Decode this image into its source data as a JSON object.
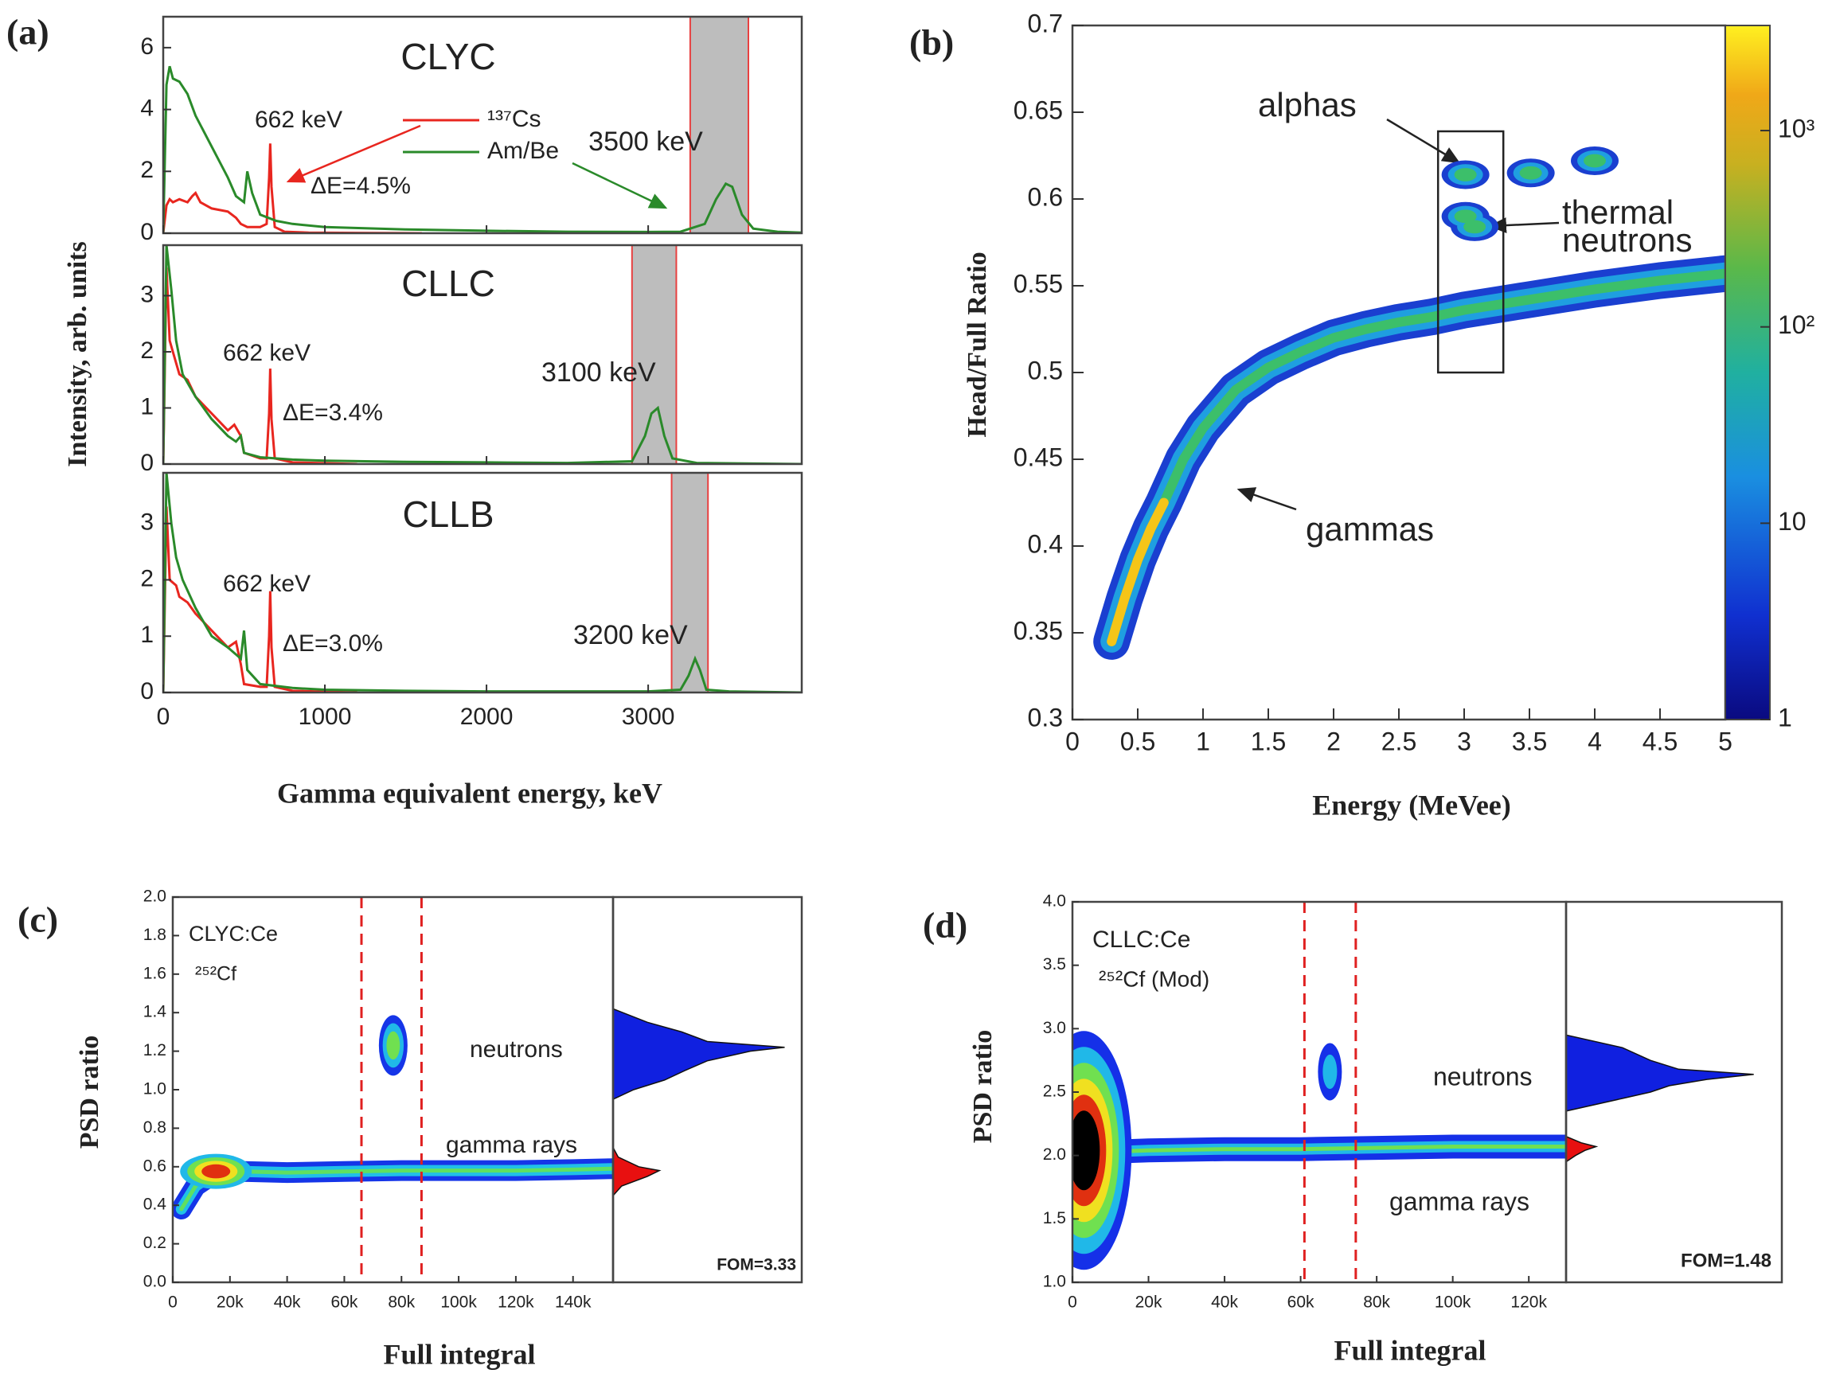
{
  "chart_data": [
    {
      "type": "line",
      "panel_label": "(a)",
      "y_label": "Intensity, arb. units",
      "x_label": "Gamma equivalent energy, keV",
      "xlim": [
        0,
        3950
      ],
      "xticks": [
        0,
        1000,
        2000,
        3000
      ],
      "band_color": "#bdbdbd",
      "subplots": [
        {
          "title": "CLYC",
          "ylim": [
            0,
            7
          ],
          "yticks": [
            0,
            2,
            4,
            6
          ],
          "bands": [
            [
              3260,
              3620
            ]
          ],
          "series": [
            {
              "name": "¹³⁷Cs",
              "color": "#e8261f",
              "x": [
                0,
                20,
                40,
                60,
                100,
                150,
                180,
                200,
                230,
                300,
                400,
                450,
                480,
                520,
                600,
                640,
                655,
                662,
                670,
                690,
                750,
                900,
                1200,
                1600
              ],
              "values": [
                0,
                0.9,
                1.1,
                1.0,
                1.1,
                1.0,
                1.2,
                1.3,
                1.0,
                0.8,
                0.7,
                0.5,
                0.3,
                0.2,
                0.2,
                0.3,
                1.8,
                2.9,
                1.5,
                0.2,
                0.05,
                0.02,
                0.01,
                0
              ]
            },
            {
              "name": "Am/Be",
              "color": "#2a8a2a",
              "x": [
                0,
                20,
                40,
                60,
                100,
                150,
                200,
                300,
                400,
                450,
                500,
                520,
                550,
                600,
                700,
                800,
                1000,
                1500,
                2000,
                2500,
                3000,
                3200,
                3350,
                3420,
                3480,
                3520,
                3580,
                3650,
                3800,
                3950
              ],
              "values": [
                0,
                4.8,
                5.4,
                5.0,
                4.9,
                4.5,
                3.8,
                2.8,
                1.8,
                1.2,
                1.0,
                2.0,
                1.3,
                0.6,
                0.4,
                0.3,
                0.2,
                0.12,
                0.08,
                0.05,
                0.04,
                0.05,
                0.3,
                1.1,
                1.6,
                1.5,
                0.6,
                0.15,
                0.05,
                0.02
              ]
            }
          ],
          "annotations": [
            "662 keV",
            "ΔE=4.5%",
            "3500 keV"
          ]
        },
        {
          "title": "CLLC",
          "ylim": [
            0,
            3.9
          ],
          "yticks": [
            0,
            1,
            2,
            3
          ],
          "bands": [
            [
              2900,
              3174
            ]
          ],
          "series": [
            {
              "color": "#e8261f",
              "x": [
                0,
                20,
                40,
                80,
                100,
                150,
                200,
                300,
                400,
                440,
                480,
                500,
                600,
                640,
                655,
                662,
                670,
                690,
                800,
                1200
              ],
              "values": [
                0,
                3.5,
                2.2,
                1.8,
                1.6,
                1.5,
                1.2,
                0.9,
                0.6,
                0.7,
                0.5,
                0.2,
                0.1,
                0.1,
                0.9,
                1.7,
                0.8,
                0.1,
                0.03,
                0
              ]
            },
            {
              "color": "#2a8a2a",
              "x": [
                0,
                20,
                50,
                80,
                120,
                200,
                300,
                400,
                450,
                480,
                500,
                600,
                800,
                1000,
                1500,
                2000,
                2500,
                2900,
                2980,
                3020,
                3060,
                3100,
                3150,
                3300,
                3950
              ],
              "values": [
                0,
                3.9,
                3.1,
                2.2,
                1.6,
                1.2,
                0.8,
                0.5,
                0.4,
                0.5,
                0.2,
                0.12,
                0.08,
                0.06,
                0.04,
                0.03,
                0.02,
                0.05,
                0.5,
                0.9,
                1.0,
                0.5,
                0.1,
                0.02,
                0
              ]
            }
          ],
          "annotations": [
            "662 keV",
            "ΔE=3.4%",
            "3100 keV"
          ]
        },
        {
          "title": "CLLB",
          "ylim": [
            0,
            3.9
          ],
          "yticks": [
            0,
            1,
            2,
            3
          ],
          "bands": [
            [
              3145,
              3370
            ]
          ],
          "series": [
            {
              "color": "#e8261f",
              "x": [
                0,
                20,
                40,
                80,
                100,
                150,
                200,
                300,
                400,
                450,
                480,
                500,
                600,
                640,
                655,
                662,
                670,
                690,
                800,
                1200
              ],
              "values": [
                0,
                3.3,
                2.0,
                1.9,
                1.7,
                1.6,
                1.4,
                1.1,
                0.8,
                0.9,
                0.5,
                0.15,
                0.1,
                0.1,
                1.0,
                1.8,
                0.8,
                0.1,
                0.03,
                0
              ]
            },
            {
              "color": "#2a8a2a",
              "x": [
                0,
                20,
                50,
                80,
                120,
                200,
                300,
                400,
                480,
                500,
                520,
                600,
                800,
                1000,
                1500,
                2000,
                2500,
                3000,
                3200,
                3250,
                3290,
                3320,
                3360,
                3500,
                3950
              ],
              "values": [
                0,
                3.9,
                3.0,
                2.4,
                2.0,
                1.5,
                1.0,
                0.8,
                0.6,
                1.1,
                0.4,
                0.15,
                0.08,
                0.05,
                0.03,
                0.02,
                0.02,
                0.02,
                0.05,
                0.3,
                0.6,
                0.4,
                0.05,
                0.02,
                0
              ]
            }
          ],
          "annotations": [
            "662 keV",
            "ΔE=3.0%",
            "3200 keV"
          ]
        }
      ]
    },
    {
      "type": "heatmap",
      "panel_label": "(b)",
      "x_label": "Energy (MeVee)",
      "y_label": "Head/Full Ratio",
      "xlim": [
        0,
        5
      ],
      "ylim": [
        0.3,
        0.7
      ],
      "xticks": [
        0,
        0.5,
        1,
        1.5,
        2,
        2.5,
        3,
        3.5,
        4,
        4.5,
        5
      ],
      "yticks": [
        0.3,
        0.35,
        0.4,
        0.45,
        0.5,
        0.55,
        0.6,
        0.65,
        0.7
      ],
      "colorbar": {
        "scale": "log",
        "lim": [
          1,
          3430
        ],
        "ticks": [
          1,
          10,
          {
            "value": 100,
            "label": "10²"
          },
          {
            "value": 1000,
            "label": "10³"
          }
        ]
      },
      "series": [
        {
          "colors": [
            "#1a3fd0",
            "#1f9fe0",
            "#3cbf6a"
          ],
          "x": [
            0.3,
            0.4,
            0.5,
            0.6,
            0.7,
            0.85,
            1,
            1.25,
            1.5,
            1.75,
            2,
            2.25,
            2.5,
            2.75,
            3,
            3.25,
            3.5,
            4,
            4.5,
            5
          ],
          "values": [
            0.345,
            0.37,
            0.392,
            0.41,
            0.425,
            0.45,
            0.468,
            0.49,
            0.503,
            0.512,
            0.52,
            0.525,
            0.529,
            0.532,
            0.536,
            0.539,
            0.542,
            0.548,
            0.553,
            0.557
          ]
        },
        {
          "colors": [
            "#f5c518"
          ],
          "x": [
            0.3,
            0.4,
            0.5,
            0.6,
            0.7
          ],
          "values": [
            0.345,
            0.37,
            0.392,
            0.41,
            0.425
          ]
        }
      ],
      "blobs": {
        "colors": [
          "#1a3fd0",
          "#1f9fe0",
          "#3cbf6a"
        ],
        "x": [
          3.01,
          3.51,
          4.0,
          3.01,
          3.08
        ],
        "values": [
          0.614,
          0.615,
          0.622,
          0.59,
          0.584
        ]
      },
      "box": {
        "x": [
          2.8,
          3.3
        ],
        "y": [
          0.5,
          0.639
        ]
      },
      "annotations": [
        "alphas",
        "thermal",
        "neutrons",
        "gammas"
      ]
    },
    {
      "type": "psd",
      "panel_label": "(c)",
      "x_label": "Full integral",
      "y_label": "PSD ratio",
      "xlim": [
        0,
        154000
      ],
      "ylim": [
        0,
        2
      ],
      "xticks": [
        0,
        {
          "value": 20000,
          "label": "20k"
        },
        {
          "value": 40000,
          "label": "40k"
        },
        {
          "value": 60000,
          "label": "60k"
        },
        {
          "value": 80000,
          "label": "80k"
        },
        {
          "value": 100000,
          "label": "100k"
        },
        {
          "value": 120000,
          "label": "120k"
        },
        {
          "value": 140000,
          "label": "140k"
        }
      ],
      "yticks": [
        {
          "value": 0,
          "label": "0.0"
        },
        0.2,
        0.4,
        0.6,
        0.8,
        {
          "value": 1,
          "label": "1.0"
        },
        1.2,
        1.4,
        1.6,
        1.8,
        {
          "value": 2,
          "label": "2.0"
        }
      ],
      "cuts": [
        66000,
        87000
      ],
      "cut_color": "#e02020",
      "band": {
        "colors": [
          "#1535e8",
          "#20c0e8",
          "#60e060"
        ],
        "x": [
          3000,
          8000,
          15000,
          25000,
          40000,
          60000,
          80000,
          100000,
          120000,
          140000,
          154000
        ],
        "values": [
          0.38,
          0.5,
          0.57,
          0.575,
          0.57,
          0.575,
          0.58,
          0.58,
          0.58,
          0.585,
          0.59
        ]
      },
      "blobs": [
        {
          "colors": [
            "#20b8e8",
            "#70e050",
            "#f0e020",
            "#e03010"
          ],
          "x": 15100,
          "value": 0.576
        },
        {
          "colors": [
            "#1535e8",
            "#20b8e8",
            "#70e050"
          ],
          "x": 77100,
          "value": 1.23
        }
      ],
      "histogram": {
        "xlim": [
          0,
          1.1
        ],
        "series": [
          {
            "color": "#1020e0",
            "y": [
              0.95,
              1.0,
              1.05,
              1.1,
              1.15,
              1.2,
              1.22,
              1.25,
              1.3,
              1.35,
              1.42
            ],
            "values": [
              0,
              0.12,
              0.3,
              0.42,
              0.55,
              0.8,
              1.0,
              0.55,
              0.4,
              0.2,
              0
            ]
          },
          {
            "color": "#e81010",
            "y": [
              0.45,
              0.5,
              0.55,
              0.58,
              0.6,
              0.65,
              0.7
            ],
            "values": [
              0,
              0.05,
              0.2,
              0.27,
              0.15,
              0.03,
              0
            ]
          }
        ]
      },
      "annotations": [
        "CLYC:Ce",
        "²⁵²Cf",
        "neutrons",
        "gamma rays",
        "FOM=3.33"
      ]
    },
    {
      "type": "psd",
      "panel_label": "(d)",
      "x_label": "Full integral",
      "y_label": "PSD ratio",
      "xlim": [
        0,
        129800
      ],
      "ylim": [
        1,
        4
      ],
      "xticks": [
        0,
        {
          "value": 20000,
          "label": "20k"
        },
        {
          "value": 40000,
          "label": "40k"
        },
        {
          "value": 60000,
          "label": "60k"
        },
        {
          "value": 80000,
          "label": "80k"
        },
        {
          "value": 100000,
          "label": "100k"
        },
        {
          "value": 120000,
          "label": "120k"
        }
      ],
      "yticks": [
        {
          "value": 1,
          "label": "1.0"
        },
        1.5,
        {
          "value": 2,
          "label": "2.0"
        },
        2.5,
        {
          "value": 3,
          "label": "3.0"
        },
        3.5,
        {
          "value": 4,
          "label": "4.0"
        }
      ],
      "cuts": [
        61000,
        74500
      ],
      "cut_color": "#e02020",
      "band": {
        "colors": [
          "#1530e8",
          "#20b8e8",
          "#70e050"
        ],
        "x": [
          1000,
          5000,
          10000,
          20000,
          40000,
          60000,
          80000,
          100000,
          129800
        ],
        "values": [
          2.0,
          2.02,
          2.03,
          2.04,
          2.05,
          2.05,
          2.06,
          2.07,
          2.07
        ]
      },
      "blobs": [
        {
          "colors": [
            "#1530e8",
            "#20b8e8",
            "#70e050",
            "#f0e020",
            "#e03010",
            "#000000"
          ],
          "x": 3000,
          "value": 2.04
        },
        {
          "colors": [
            "#1530e8",
            "#20b8e8"
          ],
          "x": 67700,
          "value": 2.66
        }
      ],
      "histogram": {
        "xlim": [
          0,
          1.15
        ],
        "series": [
          {
            "color": "#1020e0",
            "y": [
              2.35,
              2.45,
              2.5,
              2.55,
              2.6,
              2.64,
              2.68,
              2.75,
              2.85,
              2.95
            ],
            "values": [
              0,
              0.3,
              0.45,
              0.55,
              0.75,
              1.0,
              0.6,
              0.45,
              0.3,
              0
            ]
          },
          {
            "color": "#e81010",
            "y": [
              1.95,
              2.0,
              2.04,
              2.07,
              2.1,
              2.15
            ],
            "values": [
              0,
              0.05,
              0.1,
              0.16,
              0.08,
              0
            ]
          }
        ]
      },
      "annotations": [
        "CLLC:Ce",
        "²⁵²Cf (Mod)",
        "neutrons",
        "gamma rays",
        "FOM=1.48"
      ]
    }
  ]
}
